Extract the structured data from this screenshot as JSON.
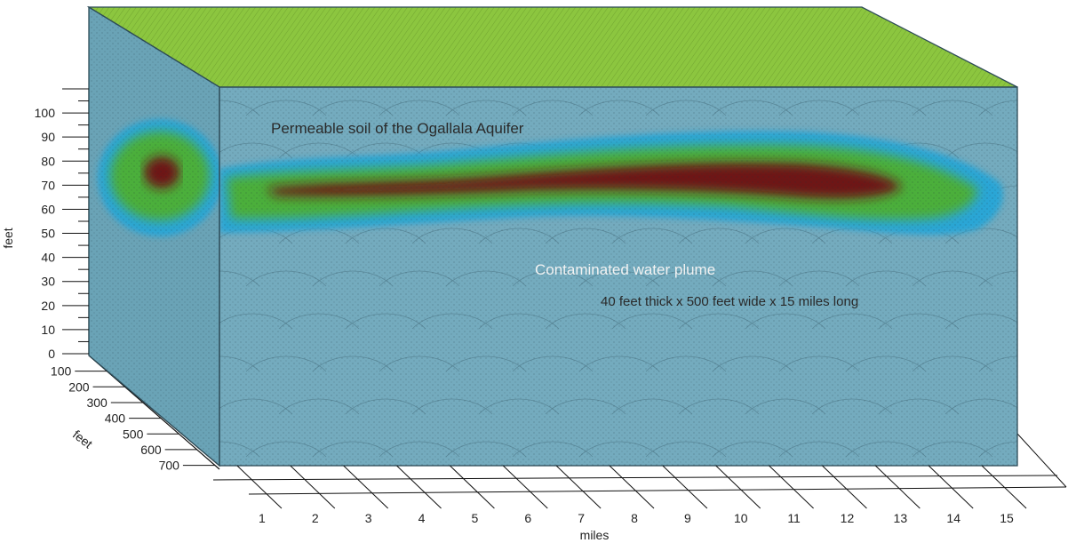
{
  "labels": {
    "soil": "Permeable soil of the  Ogallala Aquifer",
    "plume": "Contaminated water plume",
    "dimensions": "40 feet thick x 500 feet wide x 15 miles long"
  },
  "axes": {
    "vertical_title": "feet",
    "depth_title": "feet",
    "horizontal_title": "miles",
    "vertical_ticks": [
      "0",
      "10",
      "20",
      "30",
      "40",
      "50",
      "60",
      "70",
      "80",
      "90",
      "100"
    ],
    "depth_ticks": [
      "100",
      "200",
      "300",
      "400",
      "500",
      "600",
      "700"
    ],
    "horizontal_ticks": [
      "1",
      "2",
      "3",
      "4",
      "5",
      "6",
      "7",
      "8",
      "9",
      "10",
      "11",
      "12",
      "13",
      "14",
      "15"
    ]
  },
  "colors": {
    "block_side": "#6aa3b6",
    "block_front": "#74abbe",
    "block_top": "#8cc63f",
    "plume_outer": "#2ba6d6",
    "plume_mid": "#4caf3a",
    "plume_core": "#6e1414",
    "axis": "#111111"
  }
}
